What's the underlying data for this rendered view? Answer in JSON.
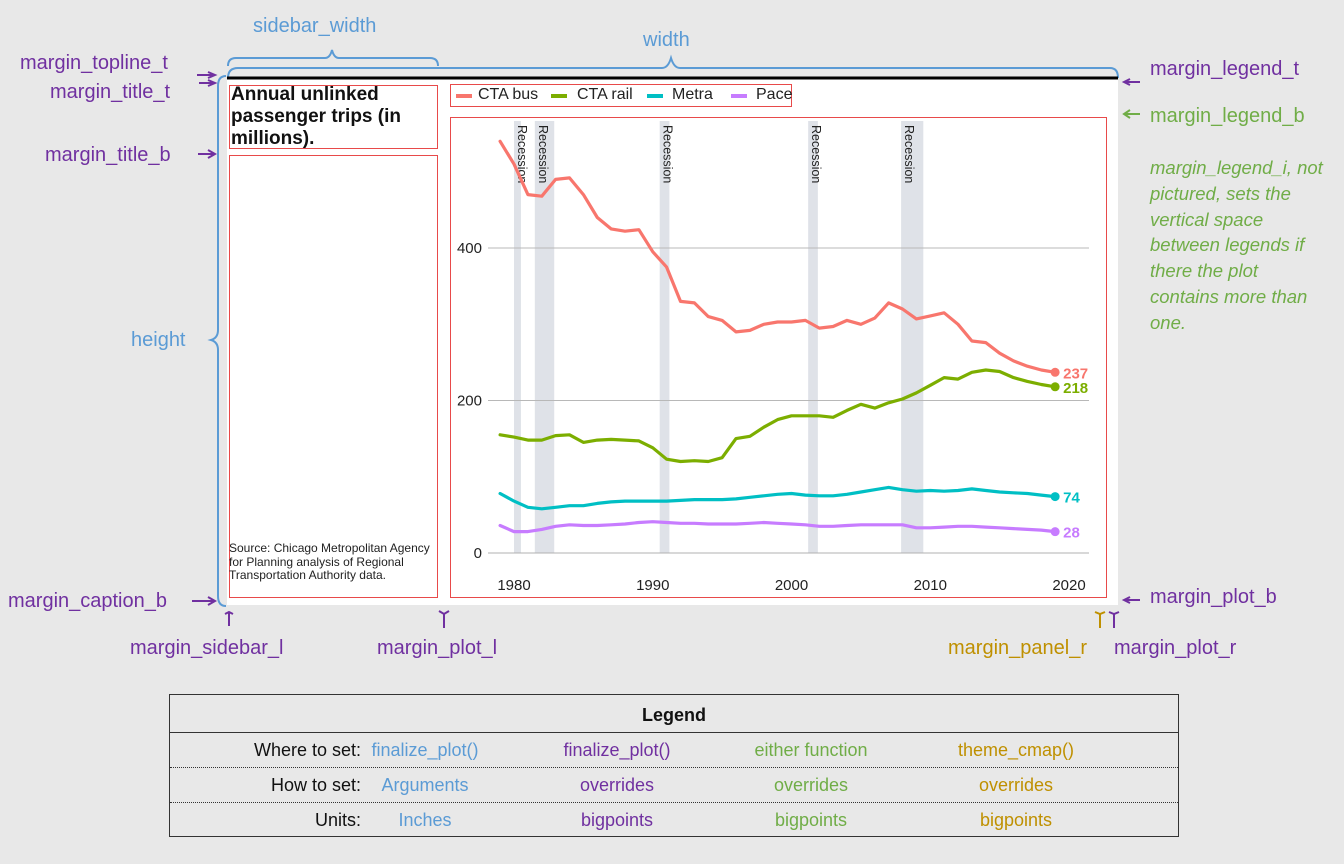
{
  "annotations": {
    "sidebar_width": "sidebar_width",
    "width": "width",
    "height": "height",
    "margin_topline_t": "margin_topline_t",
    "margin_title_t": "margin_title_t",
    "margin_title_b": "margin_title_b",
    "margin_caption_b": "margin_caption_b",
    "margin_sidebar_l": "margin_sidebar_l",
    "margin_plot_l": "margin_plot_l",
    "margin_legend_t": "margin_legend_t",
    "margin_legend_b": "margin_legend_b",
    "margin_legend_i_note": "margin_legend_i, not pictured, sets the vertical space between legends if there the plot contains more than one.",
    "margin_plot_b": "margin_plot_b",
    "margin_panel_r": "margin_panel_r",
    "margin_plot_r": "margin_plot_r"
  },
  "plot": {
    "title": "Annual unlinked passenger trips (in millions).",
    "caption": "Source: Chicago Metropolitan Agency for Planning analysis of Regional Transportation Authority data."
  },
  "chart_data": {
    "type": "line",
    "title": "Annual unlinked passenger trips (in millions).",
    "xlabel": "",
    "ylabel": "",
    "xlim": [
      1977.5,
      2021.5
    ],
    "ylim": [
      -10,
      595
    ],
    "x_ticks": [
      1980,
      1990,
      2000,
      2010,
      2020
    ],
    "y_ticks": [
      0,
      200,
      400
    ],
    "grid": "horizontal",
    "legend_position": "top",
    "recession_label": "Recession",
    "recessions": [
      [
        1980.0,
        1980.5
      ],
      [
        1981.5,
        1982.9
      ],
      [
        1990.5,
        1991.2
      ],
      [
        2001.2,
        2001.9
      ],
      [
        2007.9,
        2009.5
      ]
    ],
    "x": [
      1979,
      1980,
      1981,
      1982,
      1983,
      1984,
      1985,
      1986,
      1987,
      1988,
      1989,
      1990,
      1991,
      1992,
      1993,
      1994,
      1995,
      1996,
      1997,
      1998,
      1999,
      2000,
      2001,
      2002,
      2003,
      2004,
      2005,
      2006,
      2007,
      2008,
      2009,
      2010,
      2011,
      2012,
      2013,
      2014,
      2015,
      2016,
      2017,
      2018,
      2019
    ],
    "series": [
      {
        "name": "CTA bus",
        "color": "#f8766d",
        "end_label": "237",
        "values": [
          540,
          510,
          470,
          468,
          490,
          492,
          470,
          440,
          425,
          422,
          424,
          395,
          375,
          330,
          328,
          310,
          305,
          290,
          292,
          300,
          303,
          303,
          305,
          295,
          297,
          305,
          300,
          308,
          328,
          320,
          307,
          311,
          315,
          300,
          278,
          276,
          262,
          252,
          245,
          240,
          237
        ]
      },
      {
        "name": "CTA rail",
        "color": "#7cae00",
        "end_label": "218",
        "values": [
          155,
          152,
          148,
          148,
          154,
          155,
          145,
          148,
          149,
          148,
          147,
          138,
          123,
          120,
          121,
          120,
          125,
          150,
          153,
          165,
          175,
          180,
          180,
          180,
          178,
          187,
          195,
          190,
          197,
          202,
          210,
          220,
          230,
          228,
          237,
          240,
          238,
          230,
          225,
          221,
          218
        ]
      },
      {
        "name": "Metra",
        "color": "#00bfc4",
        "end_label": "74",
        "values": [
          78,
          68,
          60,
          58,
          60,
          62,
          62,
          65,
          67,
          68,
          68,
          68,
          68,
          69,
          70,
          70,
          70,
          71,
          73,
          75,
          77,
          78,
          76,
          75,
          75,
          77,
          80,
          83,
          86,
          83,
          81,
          82,
          81,
          82,
          84,
          82,
          80,
          79,
          78,
          76,
          74
        ]
      },
      {
        "name": "Pace",
        "color": "#c77cff",
        "end_label": "28",
        "values": [
          36,
          28,
          28,
          31,
          35,
          37,
          36,
          36,
          37,
          38,
          40,
          41,
          40,
          39,
          39,
          38,
          38,
          38,
          39,
          40,
          39,
          38,
          37,
          35,
          35,
          36,
          37,
          37,
          37,
          37,
          33,
          33,
          34,
          35,
          35,
          34,
          33,
          32,
          31,
          30,
          28
        ]
      }
    ]
  },
  "legend_table": {
    "title": "Legend",
    "rows": [
      {
        "label": "Where to set:",
        "cells": [
          "finalize_plot()",
          "finalize_plot()",
          "either function",
          "theme_cmap()"
        ]
      },
      {
        "label": "How to set:",
        "cells": [
          "Arguments",
          "overrides",
          "overrides",
          "overrides"
        ]
      },
      {
        "label": "Units:",
        "cells": [
          "Inches",
          "bigpoints",
          "bigpoints",
          "bigpoints"
        ]
      }
    ]
  },
  "colors": {
    "blue": "#5b9bd5",
    "purple": "#7030a0",
    "green": "#70ad47",
    "gold": "#bf9000",
    "red_box": "#e84a4a",
    "background": "#e8e8e8",
    "recession_band": "#dfe2e8"
  }
}
